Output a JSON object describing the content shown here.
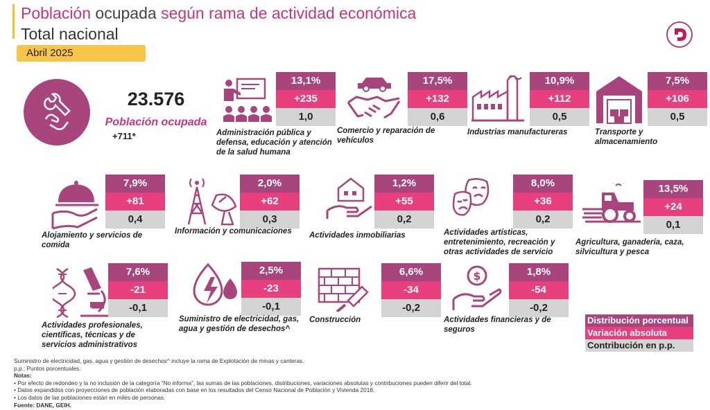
{
  "header": {
    "title_part1": "Población",
    "title_part2": "ocupada",
    "title_part3": "según rama de actividad económica",
    "subtitle": "Total nacional",
    "date": "Abril 2025"
  },
  "hero": {
    "total": "23.576",
    "label": "Población ocupada",
    "variation": "+711*"
  },
  "legend": {
    "distribution": "Distribución porcentual",
    "variation": "Variación absoluta",
    "contribution": "Contribución en p.p."
  },
  "chart_data": {
    "type": "table",
    "title": "Población ocupada según rama de actividad económica",
    "columns": [
      "Distribución porcentual",
      "Variación absoluta",
      "Contribución en p.p."
    ],
    "sectors": [
      {
        "name": "Administración pública y defensa, educación y atención de la salud humana",
        "pct": "13,1%",
        "abs": "+235",
        "pp": "1,0"
      },
      {
        "name": "Comercio y reparación de vehículos",
        "pct": "17,5%",
        "abs": "+132",
        "pp": "0,6"
      },
      {
        "name": "Industrias manufactureras",
        "pct": "10,9%",
        "abs": "+112",
        "pp": "0,5"
      },
      {
        "name": "Transporte y almacenamiento",
        "pct": "7,5%",
        "abs": "+106",
        "pp": "0,5"
      },
      {
        "name": "Alojamiento y servicios de comida",
        "pct": "7,9%",
        "abs": "+81",
        "pp": "0,4"
      },
      {
        "name": "Información y comunicaciones",
        "pct": "2,0%",
        "abs": "+62",
        "pp": "0,3"
      },
      {
        "name": "Actividades inmobiliarias",
        "pct": "1,2%",
        "abs": "+55",
        "pp": "0,2"
      },
      {
        "name": "Actividades artísticas, entretenimiento, recreación y otras actividades de servicio",
        "pct": "8,0%",
        "abs": "+36",
        "pp": "0,2"
      },
      {
        "name": "Agricultura, ganadería, caza, silvicultura y pesca",
        "pct": "13,5%",
        "abs": "+24",
        "pp": "0,1"
      },
      {
        "name": "Actividades profesionales, científicas, técnicas y de servicios administrativos",
        "pct": "7,6%",
        "abs": "-21",
        "pp": "-0,1"
      },
      {
        "name": "Suministro de electricidad, gas, agua y gestión de desechos^",
        "pct": "2,5%",
        "abs": "-23",
        "pp": "-0,1"
      },
      {
        "name": "Construcción",
        "pct": "6,6%",
        "abs": "-34",
        "pp": "-0,2"
      },
      {
        "name": "Actividades financieras y de seguros",
        "pct": "1,8%",
        "abs": "-54",
        "pp": "-0,2"
      }
    ]
  },
  "notes": {
    "line1": "Suministro de electricidad, gas, agua y gestión de desechos^ incluye la rama de Explotación de minas y canteras.",
    "line2": "p.p.: Puntos porcentuales.",
    "heading": "Notas:",
    "line3": "• Por efecto de redondeo y la no inclusión de la categoría “No informa”, las sumas de las poblaciones, distribuciones, variaciones absolutas y contribuciones pueden diferir del total.",
    "line4": "• Datos expandidos con proyecciones de población elaboradas con base en los resultados del Censo Nacional de Población y Vivienda 2018.",
    "line5": "• Los datos de las poblaciones están en miles de personas.",
    "source": "Fuente: DANE, GEIH."
  },
  "colors": {
    "primary": "#a8457d",
    "pink": "#e8407e",
    "gray": "#d4d4d4",
    "yellow": "#f7c548"
  },
  "icons": [
    "worker-hands-icon",
    "teacher-icon",
    "handshake-car-icon",
    "factory-icon",
    "warehouse-icon",
    "cloche-icon",
    "antenna-icon",
    "house-hand-icon",
    "theater-masks-icon",
    "tractor-icon",
    "dna-microscope-icon",
    "electricity-water-icon",
    "brick-trowel-icon",
    "money-hand-icon"
  ]
}
